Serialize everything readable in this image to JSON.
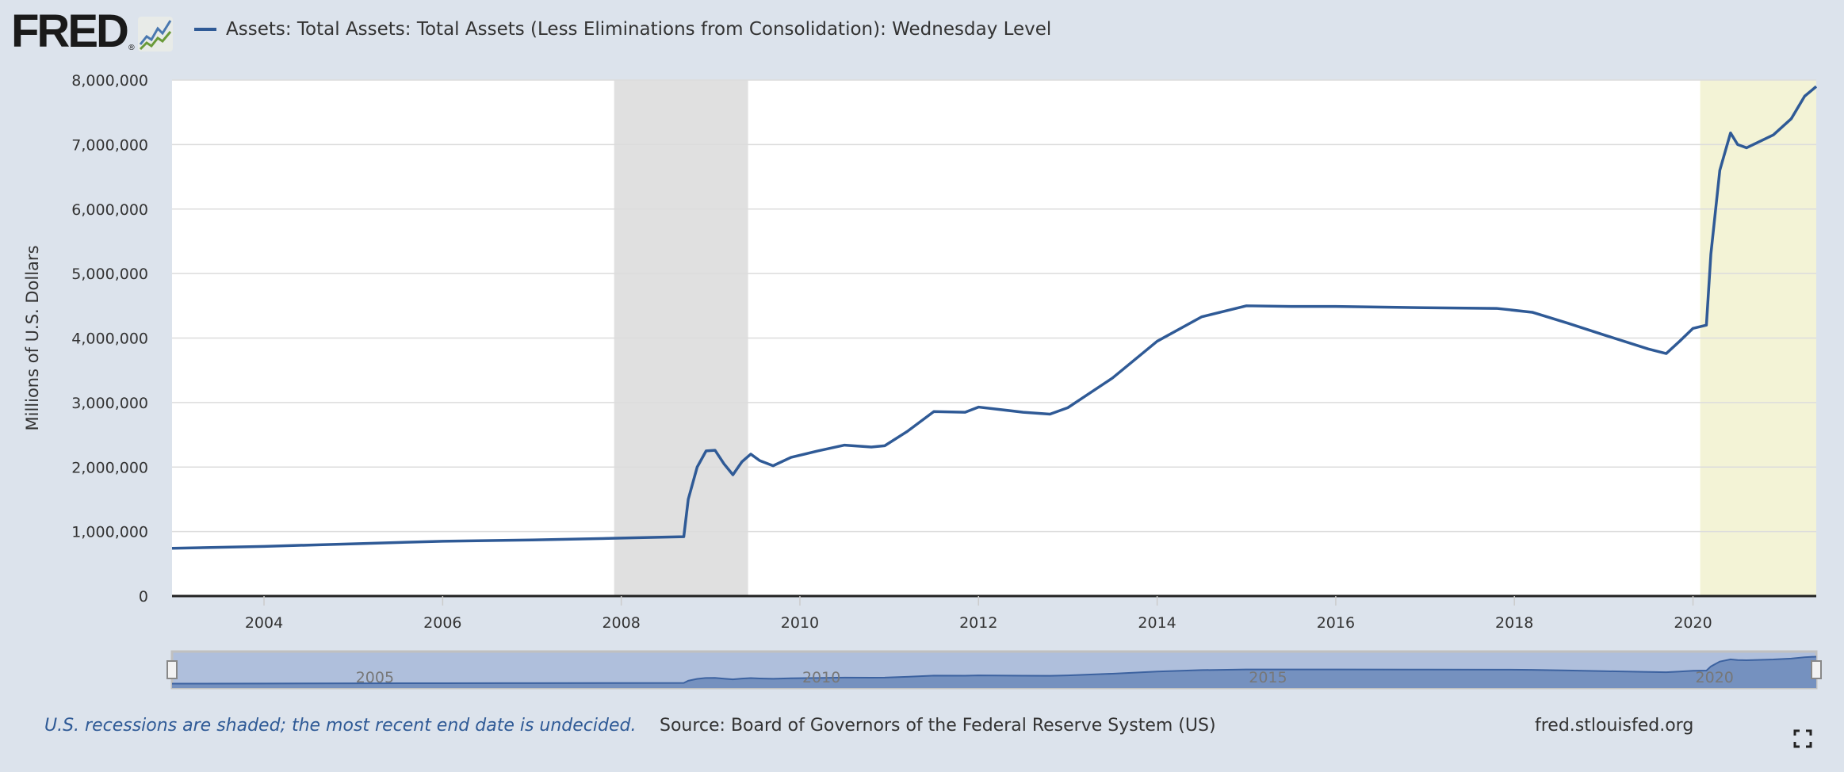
{
  "header": {
    "logo_text": "FRED",
    "logo_icon": "chart-line-icon"
  },
  "footer": {
    "note": "U.S. recessions are shaded; the most recent end date is undecided.",
    "source": "Source: Board of Governors of the Federal Reserve System (US)",
    "url": "fred.stlouisfed.org",
    "fullscreen_icon": "fullscreen-icon"
  },
  "colors": {
    "series": "#2f5a96",
    "recession": "#e0e0e0",
    "recession_current": "#f3f3d6",
    "background": "#dce3ec"
  },
  "chart_data": {
    "type": "line",
    "title": "",
    "ylabel": "Millions of U.S. Dollars",
    "xlabel": "",
    "ylim": [
      0,
      8000000
    ],
    "xlim": [
      2002.97,
      2021.38
    ],
    "yticks": [
      "0",
      "1,000,000",
      "2,000,000",
      "3,000,000",
      "4,000,000",
      "5,000,000",
      "6,000,000",
      "7,000,000",
      "8,000,000"
    ],
    "ytick_values": [
      0,
      1000000,
      2000000,
      3000000,
      4000000,
      5000000,
      6000000,
      7000000,
      8000000
    ],
    "xticks": [
      "2004",
      "2006",
      "2008",
      "2010",
      "2012",
      "2014",
      "2016",
      "2018",
      "2020"
    ],
    "xtick_values": [
      2004,
      2006,
      2008,
      2010,
      2012,
      2014,
      2016,
      2018,
      2020
    ],
    "grid": true,
    "legend": "top-left",
    "recessions": [
      [
        2007.92,
        2009.42
      ],
      [
        2020.08,
        2021.38
      ]
    ],
    "navigator_labels": [
      "2005",
      "2010",
      "2015",
      "2020"
    ],
    "navigator_label_values": [
      2005,
      2010,
      2015,
      2020
    ],
    "series": [
      {
        "name": "Assets: Total Assets: Total Assets (Less Eliminations from Consolidation): Wednesday Level",
        "x": [
          2002.97,
          2004,
          2005,
          2006,
          2007,
          2007.9,
          2008.7,
          2008.75,
          2008.85,
          2008.95,
          2009.05,
          2009.15,
          2009.25,
          2009.35,
          2009.45,
          2009.55,
          2009.7,
          2009.9,
          2010.2,
          2010.5,
          2010.8,
          2010.95,
          2011.2,
          2011.5,
          2011.85,
          2012.0,
          2012.5,
          2012.8,
          2013.0,
          2013.5,
          2014.0,
          2014.5,
          2015.0,
          2015.5,
          2016,
          2017,
          2017.8,
          2018.2,
          2018.6,
          2019.0,
          2019.5,
          2019.7,
          2019.85,
          2020.0,
          2020.15,
          2020.2,
          2020.3,
          2020.42,
          2020.5,
          2020.6,
          2020.9,
          2021.1,
          2021.25,
          2021.38
        ],
        "values": [
          740000,
          770000,
          810000,
          850000,
          870000,
          895000,
          920000,
          1500000,
          2000000,
          2250000,
          2260000,
          2050000,
          1880000,
          2080000,
          2200000,
          2100000,
          2020000,
          2150000,
          2250000,
          2340000,
          2310000,
          2330000,
          2550000,
          2860000,
          2850000,
          2930000,
          2850000,
          2820000,
          2920000,
          3380000,
          3950000,
          4330000,
          4500000,
          4490000,
          4490000,
          4470000,
          4460000,
          4400000,
          4230000,
          4050000,
          3830000,
          3760000,
          3950000,
          4150000,
          4200000,
          5300000,
          6600000,
          7180000,
          7000000,
          6950000,
          7150000,
          7400000,
          7750000,
          7900000
        ]
      }
    ]
  }
}
